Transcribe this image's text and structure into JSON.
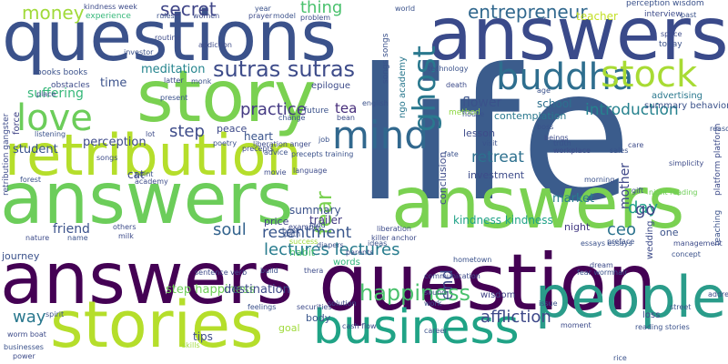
{
  "words": [
    {
      "text": "life",
      "color": "#3b5c8c"
    },
    {
      "text": "answers",
      "color": "#3a4a8a"
    },
    {
      "text": "answers",
      "color": "#6ccd5a"
    },
    {
      "text": "answers",
      "color": "#7ad151"
    },
    {
      "text": "answers",
      "color": "#440154"
    },
    {
      "text": "question",
      "color": "#440154"
    },
    {
      "text": "questions",
      "color": "#3b528b"
    },
    {
      "text": "retribution",
      "color": "#b5de2b"
    },
    {
      "text": "story",
      "color": "#7ad151"
    },
    {
      "text": "stories",
      "color": "#b5de2b"
    },
    {
      "text": "people",
      "color": "#2a9c8a"
    },
    {
      "text": "business",
      "color": "#20a386"
    },
    {
      "text": "buddha",
      "color": "#2e6e8e"
    },
    {
      "text": "stock",
      "color": "#a8db34"
    },
    {
      "text": "mind",
      "color": "#31688e"
    },
    {
      "text": "love",
      "color": "#6ccd5a"
    },
    {
      "text": "ghost",
      "color": "#2a788e"
    },
    {
      "text": "sutras sutras",
      "color": "#3e4c8a"
    },
    {
      "text": "happiness",
      "color": "#4ac16d"
    },
    {
      "text": "entrepreneur",
      "color": "#31688e"
    },
    {
      "text": "money",
      "color": "#a0da39"
    },
    {
      "text": "secret",
      "color": "#404688"
    },
    {
      "text": "thing",
      "color": "#4ac16d"
    },
    {
      "text": "introduction",
      "color": "#26828e"
    },
    {
      "text": "lectures lectures",
      "color": "#287c8e"
    },
    {
      "text": "soul",
      "color": "#33638d"
    },
    {
      "text": "resentment",
      "color": "#39568c"
    },
    {
      "text": "retreat",
      "color": "#2d708e"
    },
    {
      "text": "affliction",
      "color": "#3e4989"
    },
    {
      "text": "step",
      "color": "#3e4c8a"
    },
    {
      "text": "practice",
      "color": "#443983"
    },
    {
      "text": "way",
      "color": "#2a788e"
    },
    {
      "text": "tea",
      "color": "#472d7b"
    },
    {
      "text": "fear",
      "color": "#7ad151"
    },
    {
      "text": "end",
      "color": "#3e4989"
    },
    {
      "text": "ceo",
      "color": "#2c728e"
    },
    {
      "text": "go",
      "color": "#404688"
    },
    {
      "text": "mother",
      "color": "#3f4889"
    },
    {
      "text": "day",
      "color": "#1f9e89"
    },
    {
      "text": "meditation",
      "color": "#25858e"
    },
    {
      "text": "time",
      "color": "#3b528b"
    },
    {
      "text": "suffering",
      "color": "#35b779"
    },
    {
      "text": "perception",
      "color": "#3e4a89"
    },
    {
      "text": "student",
      "color": "#3a538b"
    },
    {
      "text": "flower",
      "color": "#3b528b"
    },
    {
      "text": "school",
      "color": "#2d708e"
    },
    {
      "text": "teacher",
      "color": "#c2df23"
    },
    {
      "text": "market",
      "color": "#287d8e"
    },
    {
      "text": "kindness kindness",
      "color": "#1fa287"
    },
    {
      "text": "step happiness",
      "color": "#6ece58"
    },
    {
      "text": "destination",
      "color": "#3e4a89"
    },
    {
      "text": "friend",
      "color": "#3b528b"
    },
    {
      "text": "summary",
      "color": "#3b528b"
    },
    {
      "text": "trailer",
      "color": "#443a83"
    },
    {
      "text": "price",
      "color": "#414487"
    },
    {
      "text": "cat",
      "color": "#3f4889"
    },
    {
      "text": "heart",
      "color": "#3a548c"
    },
    {
      "text": "peace",
      "color": "#3e4a89"
    },
    {
      "text": "habit",
      "color": "#4ac16d"
    },
    {
      "text": "words",
      "color": "#31b57b"
    },
    {
      "text": "body",
      "color": "#39568c"
    },
    {
      "text": "tips",
      "color": "#3e4c8a"
    },
    {
      "text": "night",
      "color": "#443983"
    },
    {
      "text": "one",
      "color": "#3b528b"
    },
    {
      "text": "journey",
      "color": "#3b528b"
    },
    {
      "text": "investment",
      "color": "#3e4c8a"
    },
    {
      "text": "lesson",
      "color": "#3e4c8a"
    },
    {
      "text": "contemplation",
      "color": "#2a788e"
    },
    {
      "text": "epilogue",
      "color": "#3e4c8a"
    },
    {
      "text": "future",
      "color": "#3b528b"
    },
    {
      "text": "advertising",
      "color": "#2a788e"
    },
    {
      "text": "summary behavior",
      "color": "#3b528b"
    },
    {
      "text": "wisdom",
      "color": "#414487"
    },
    {
      "text": "loss",
      "color": "#3f4889"
    },
    {
      "text": "goal",
      "color": "#9fda3a"
    },
    {
      "text": "experience",
      "color": "#35b779"
    },
    {
      "text": "kindness week",
      "color": "#3e4c8a"
    },
    {
      "text": "books books",
      "color": "#3b528b"
    },
    {
      "text": "obstacles",
      "color": "#3e4c8a"
    },
    {
      "text": "force",
      "color": "#414487"
    },
    {
      "text": "retribution gangster",
      "color": "#3e4c8a"
    },
    {
      "text": "method",
      "color": "#8fd744"
    },
    {
      "text": "perception wisdom",
      "color": "#3b528b"
    },
    {
      "text": "interview",
      "color": "#3e4c8a"
    },
    {
      "text": "today",
      "color": "#3b528b"
    },
    {
      "text": "past",
      "color": "#3b528b"
    },
    {
      "text": "songs songs",
      "color": "#3b528b"
    },
    {
      "text": "ngo academy",
      "color": "#2a788e"
    },
    {
      "text": "english",
      "color": "#3b528b"
    },
    {
      "text": "conclusion",
      "color": "#3e4c8a"
    },
    {
      "text": "workplace",
      "color": "#3e4c8a"
    },
    {
      "text": "truth",
      "color": "#3b528b"
    },
    {
      "text": "simplicity",
      "color": "#3e4c8a"
    },
    {
      "text": "night reading",
      "color": "#6ece58"
    },
    {
      "text": "teaching",
      "color": "#3b528b"
    },
    {
      "text": "platform platform",
      "color": "#3e4c8a"
    },
    {
      "text": "killer anchor",
      "color": "#3e4c8a"
    },
    {
      "text": "essays essays",
      "color": "#3b528b"
    },
    {
      "text": "preface",
      "color": "#3b528b"
    },
    {
      "text": "wedding",
      "color": "#3e4c8a"
    },
    {
      "text": "fear worm",
      "color": "#3b528b"
    },
    {
      "text": "dream",
      "color": "#3e4c8a"
    },
    {
      "text": "hair",
      "color": "#3b528b"
    },
    {
      "text": "street",
      "color": "#3b528b"
    },
    {
      "text": "reading stories",
      "color": "#3b528b"
    },
    {
      "text": "moment",
      "color": "#3e4c8a"
    },
    {
      "text": "liberation",
      "color": "#3e4c8a"
    },
    {
      "text": "success",
      "color": "#9fda3a"
    },
    {
      "text": "path",
      "color": "#3b528b"
    },
    {
      "text": "example",
      "color": "#3e4c8a"
    },
    {
      "text": "feelings",
      "color": "#3b528b"
    },
    {
      "text": "securities",
      "color": "#3e4c8a"
    },
    {
      "text": "skills",
      "color": "#9fda3a"
    },
    {
      "text": "businesses",
      "color": "#3b528b"
    },
    {
      "text": "worm boat",
      "color": "#3e4c8a"
    },
    {
      "text": "spirit",
      "color": "#3b528b"
    },
    {
      "text": "sentence verb",
      "color": "#3e4c8a"
    },
    {
      "text": "cash flow",
      "color": "#3e4c8a"
    },
    {
      "text": "career",
      "color": "#3b528b"
    },
    {
      "text": "precepts",
      "color": "#3e4c8a"
    },
    {
      "text": "movie",
      "color": "#3e4c8a"
    },
    {
      "text": "food",
      "color": "#3b528b"
    },
    {
      "text": "book",
      "color": "#3b528b"
    },
    {
      "text": "thera",
      "color": "#3e4c8a"
    },
    {
      "text": "poetry",
      "color": "#3b528b"
    },
    {
      "text": "songs",
      "color": "#3e4c8a"
    },
    {
      "text": "point",
      "color": "#3b528b"
    },
    {
      "text": "academy",
      "color": "#3e4c8a"
    },
    {
      "text": "listening",
      "color": "#3b528b"
    },
    {
      "text": "job",
      "color": "#3b528b"
    },
    {
      "text": "language",
      "color": "#3e4c8a"
    },
    {
      "text": "precepts training",
      "color": "#3b528b"
    },
    {
      "text": "visit",
      "color": "#3b528b"
    },
    {
      "text": "house",
      "color": "#3b528b"
    },
    {
      "text": "beings",
      "color": "#3e4c8a"
    },
    {
      "text": "fate",
      "color": "#3b528b"
    },
    {
      "text": "morning",
      "color": "#3b528b"
    },
    {
      "text": "gift",
      "color": "#3e4c8a"
    },
    {
      "text": "boss",
      "color": "#3b528b"
    },
    {
      "text": "care",
      "color": "#3e4c8a"
    },
    {
      "text": "sales",
      "color": "#3b528b"
    },
    {
      "text": "world",
      "color": "#3b528b"
    },
    {
      "text": "year",
      "color": "#3b528b"
    },
    {
      "text": "prayer",
      "color": "#3e4c8a"
    },
    {
      "text": "model",
      "color": "#3b528b"
    },
    {
      "text": "problem",
      "color": "#3e4c8a"
    },
    {
      "text": "self",
      "color": "#3b528b"
    },
    {
      "text": "women",
      "color": "#3e4c8a"
    },
    {
      "text": "rules",
      "color": "#3b528b"
    },
    {
      "text": "routine",
      "color": "#3e4c8a"
    },
    {
      "text": "investor",
      "color": "#3b528b"
    },
    {
      "text": "addiction",
      "color": "#3e4c8a"
    },
    {
      "text": "monk",
      "color": "#3b528b"
    },
    {
      "text": "latter",
      "color": "#3e4c8a"
    },
    {
      "text": "present",
      "color": "#3b528b"
    },
    {
      "text": "place",
      "color": "#3e4c8a"
    },
    {
      "text": "technology",
      "color": "#3b528b"
    },
    {
      "text": "death",
      "color": "#3e4c8a"
    },
    {
      "text": "age",
      "color": "#3b528b"
    },
    {
      "text": "bean",
      "color": "#3e4c8a"
    },
    {
      "text": "change",
      "color": "#3b528b"
    },
    {
      "text": "liberation anger",
      "color": "#3e4c8a"
    },
    {
      "text": "advice",
      "color": "#3b528b"
    },
    {
      "text": "lot",
      "color": "#3e4c8a"
    },
    {
      "text": "forest",
      "color": "#3b528b"
    },
    {
      "text": "nature",
      "color": "#3e4c8a"
    },
    {
      "text": "hometown",
      "color": "#3b528b"
    },
    {
      "text": "communication",
      "color": "#3e4c8a"
    },
    {
      "text": "ideas",
      "color": "#3b528b"
    },
    {
      "text": "parents",
      "color": "#3e4c8a"
    },
    {
      "text": "diapers",
      "color": "#3b528b"
    },
    {
      "text": "milk",
      "color": "#3e4c8a"
    },
    {
      "text": "name",
      "color": "#3b528b"
    },
    {
      "text": "others",
      "color": "#3e4c8a"
    },
    {
      "text": "build",
      "color": "#3b528b"
    },
    {
      "text": "solution",
      "color": "#3e4c8a"
    },
    {
      "text": "issue",
      "color": "#3b528b"
    },
    {
      "text": "power",
      "color": "#3e4c8a"
    },
    {
      "text": "rice",
      "color": "#3b528b"
    },
    {
      "text": "management",
      "color": "#3e4c8a"
    },
    {
      "text": "concept",
      "color": "#3b528b"
    },
    {
      "text": "sound",
      "color": "#3e4c8a"
    },
    {
      "text": "work",
      "color": "#3b528b"
    },
    {
      "text": "space",
      "color": "#3e4c8a"
    },
    {
      "text": "reason",
      "color": "#3b528b"
    },
    {
      "text": "address",
      "color": "#3e4c8a"
    }
  ]
}
